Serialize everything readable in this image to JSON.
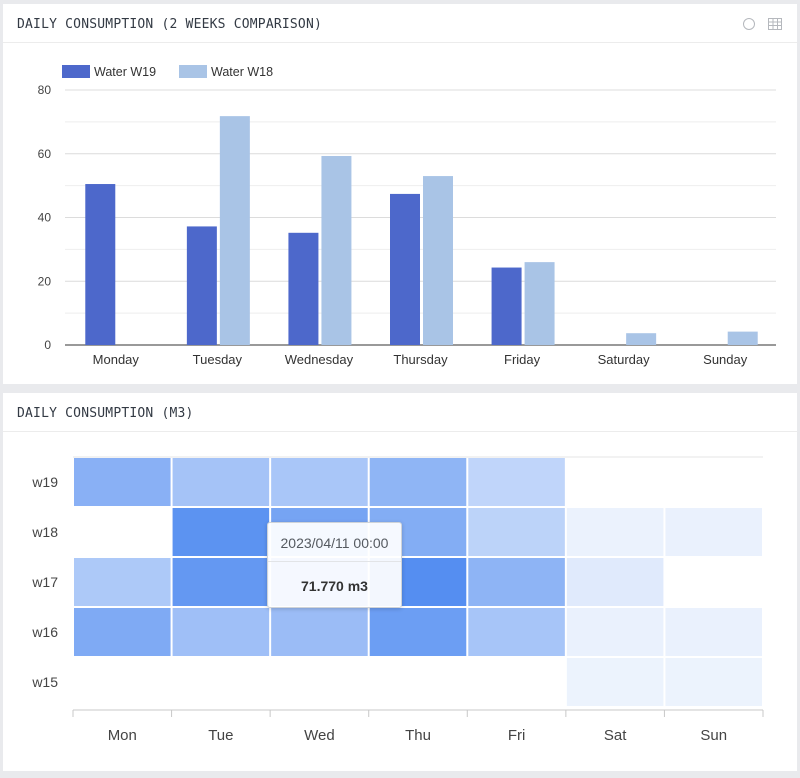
{
  "panels": {
    "bar": {
      "title": "DAILY CONSUMPTION (2 WEEKS COMPARISON)"
    },
    "heatmap": {
      "title": "DAILY CONSUMPTION (M3)"
    }
  },
  "icons": {
    "circle": "circle-icon",
    "table": "table-icon"
  },
  "tooltip": {
    "time": "2023/04/11 00:00",
    "value": "71.770 m3"
  },
  "chart_data": [
    {
      "type": "bar",
      "categories": [
        "Monday",
        "Tuesday",
        "Wednesday",
        "Thursday",
        "Friday",
        "Saturday",
        "Sunday"
      ],
      "series": [
        {
          "name": "Water W19",
          "color": "#4d68cb",
          "values": [
            50.5,
            37.2,
            35.2,
            47.4,
            24.3,
            null,
            null
          ]
        },
        {
          "name": "Water W18",
          "color": "#a9c4e6",
          "values": [
            null,
            71.8,
            59.3,
            53.0,
            26.0,
            3.7,
            4.2
          ]
        }
      ],
      "y_ticks": [
        0,
        20,
        40,
        60,
        80
      ],
      "ylim": [
        0,
        80
      ],
      "legend": "top-left",
      "grid": true
    },
    {
      "type": "heatmap",
      "x_categories": [
        "Mon",
        "Tue",
        "Wed",
        "Thu",
        "Fri",
        "Sat",
        "Sun"
      ],
      "y_categories": [
        "w19",
        "w18",
        "w17",
        "w16",
        "w15"
      ],
      "values": [
        [
          50.5,
          37.2,
          35.2,
          47.4,
          24.3,
          null,
          null
        ],
        [
          null,
          71.8,
          59.3,
          53.0,
          26.0,
          3.7,
          4.2
        ],
        [
          33.0,
          68.0,
          63.0,
          75.0,
          48.0,
          9.0,
          null
        ],
        [
          55.0,
          40.0,
          42.0,
          64.0,
          36.0,
          4.0,
          4.0
        ],
        [
          null,
          null,
          null,
          null,
          null,
          3.0,
          3.0
        ]
      ],
      "color_low": "#ffffff",
      "color_high": "#4f8af0",
      "vmax": 78
    }
  ]
}
